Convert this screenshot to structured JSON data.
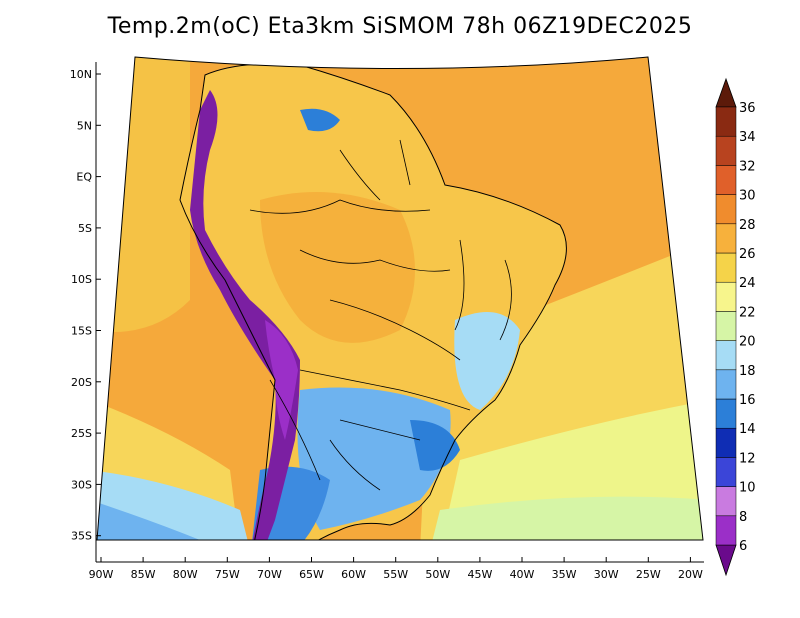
{
  "title": "Temp.2m(oC) Eta3km SiSMOM 78h 06Z19DEC2025",
  "lat_labels": [
    "10N",
    "5N",
    "EQ",
    "5S",
    "10S",
    "15S",
    "20S",
    "25S",
    "30S",
    "35S"
  ],
  "lon_labels": [
    "90W",
    "85W",
    "80W",
    "75W",
    "70W",
    "65W",
    "60W",
    "55W",
    "50W",
    "45W",
    "40W",
    "35W",
    "30W",
    "25W",
    "20W"
  ],
  "colorbar": {
    "unit": "oC",
    "labels": [
      "6",
      "8",
      "10",
      "12",
      "14",
      "16",
      "18",
      "20",
      "22",
      "24",
      "26",
      "28",
      "30",
      "32",
      "34",
      "36"
    ],
    "colors": [
      "#6a0a8c",
      "#9b2fc8",
      "#c97be0",
      "#3b45d8",
      "#0f2db4",
      "#2c7fd8",
      "#6eb3ef",
      "#a6dcf5",
      "#d6f5a6",
      "#f7f58c",
      "#f5d349",
      "#f7b13c",
      "#f08c2d",
      "#e0602a",
      "#b8431f",
      "#8a2a12",
      "#5c1a0a"
    ]
  },
  "legend_colors": {
    "ocean_warm": "#f5a93b",
    "ocean_mild": "#f7d65a",
    "ocean_cool": "#eef58a",
    "land_base": "#f7c64a",
    "andes": "#7b1fa2",
    "south_cold": "#3d8be0",
    "coast": "#000000"
  }
}
